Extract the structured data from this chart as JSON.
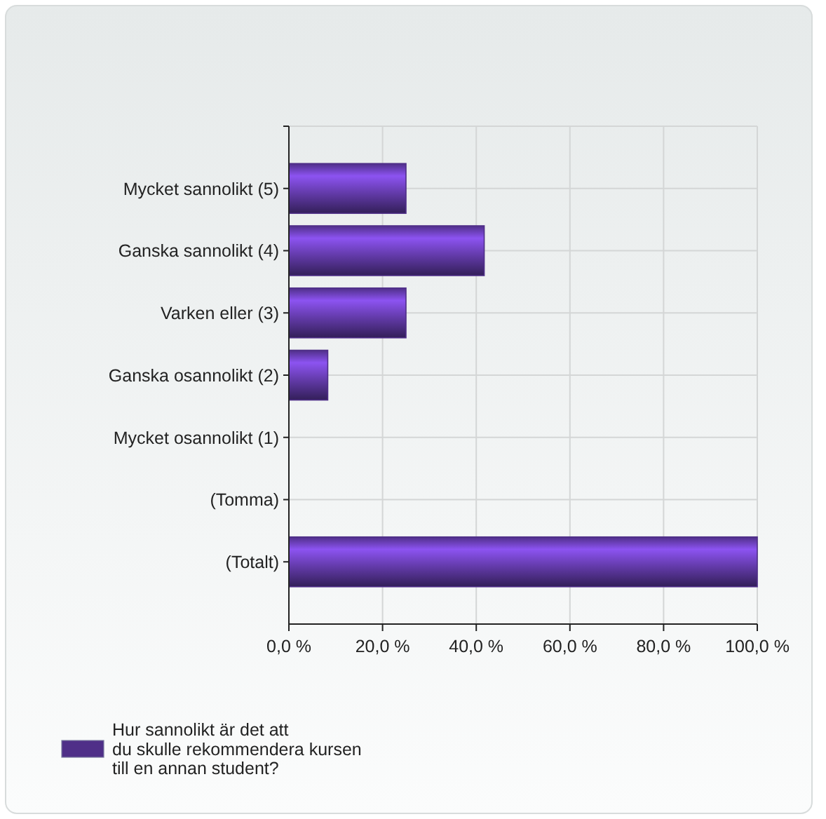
{
  "chart_data": {
    "type": "bar",
    "orientation": "horizontal",
    "categories": [
      "Mycket sannolikt (5)",
      "Ganska sannolikt (4)",
      "Varken eller (3)",
      "Ganska osannolikt (2)",
      "Mycket osannolikt (1)",
      "(Tomma)",
      "(Totalt)"
    ],
    "series": [
      {
        "name": "Hur sannolikt är det att\ndu skulle rekommendera kursen\ntill en annan student?",
        "color": "#4f2f88",
        "values": [
          25,
          41.7,
          25,
          8.3,
          0,
          0,
          100
        ]
      }
    ],
    "xlim": [
      0,
      100
    ],
    "xticks": [
      {
        "value": 0,
        "label": "0,0 %"
      },
      {
        "value": 20,
        "label": "20,0 %"
      },
      {
        "value": 40,
        "label": "40,0 %"
      },
      {
        "value": 60,
        "label": "60,0 %"
      },
      {
        "value": 80,
        "label": "80,0 %"
      },
      {
        "value": 100,
        "label": "100,0 %"
      }
    ],
    "grid": true,
    "legend": "bottom left"
  }
}
